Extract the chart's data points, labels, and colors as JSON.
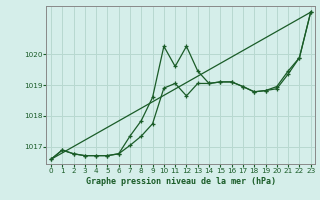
{
  "background_color": "#d5eeea",
  "grid_color": "#b8d8d0",
  "line_color": "#1a5c28",
  "title": "Graphe pression niveau de la mer (hPa)",
  "xlabel_ticks": [
    0,
    1,
    2,
    3,
    4,
    5,
    6,
    7,
    8,
    9,
    10,
    11,
    12,
    13,
    14,
    15,
    16,
    17,
    18,
    19,
    20,
    21,
    22,
    23
  ],
  "yticks": [
    1017,
    1018,
    1019,
    1020
  ],
  "ylim": [
    1016.45,
    1021.55
  ],
  "xlim": [
    -0.4,
    23.4
  ],
  "curve1_x": [
    0,
    1,
    2,
    3,
    4,
    5,
    6,
    7,
    8,
    9,
    10,
    11,
    12,
    13,
    14,
    15,
    16,
    17,
    18,
    19,
    20,
    21,
    22,
    23
  ],
  "curve1_y": [
    1016.6,
    1016.9,
    1016.78,
    1016.72,
    1016.72,
    1016.72,
    1016.78,
    1017.05,
    1017.35,
    1017.75,
    1018.9,
    1019.05,
    1018.65,
    1019.05,
    1019.05,
    1019.1,
    1019.1,
    1018.95,
    1018.78,
    1018.82,
    1018.88,
    1019.35,
    1019.88,
    1021.35
  ],
  "curve2_x": [
    0,
    1,
    2,
    3,
    4,
    5,
    6,
    7,
    8,
    9,
    10,
    11,
    12,
    13,
    14,
    15,
    16,
    17,
    18,
    19,
    20,
    21,
    22,
    23
  ],
  "curve2_y": [
    1016.6,
    1016.9,
    1016.78,
    1016.72,
    1016.72,
    1016.72,
    1016.78,
    1017.35,
    1017.85,
    1018.6,
    1020.25,
    1019.6,
    1020.25,
    1019.45,
    1019.05,
    1019.1,
    1019.1,
    1018.95,
    1018.78,
    1018.82,
    1018.95,
    1019.45,
    1019.88,
    1021.35
  ],
  "curve3_x": [
    0,
    23
  ],
  "curve3_y": [
    1016.6,
    1021.35
  ]
}
